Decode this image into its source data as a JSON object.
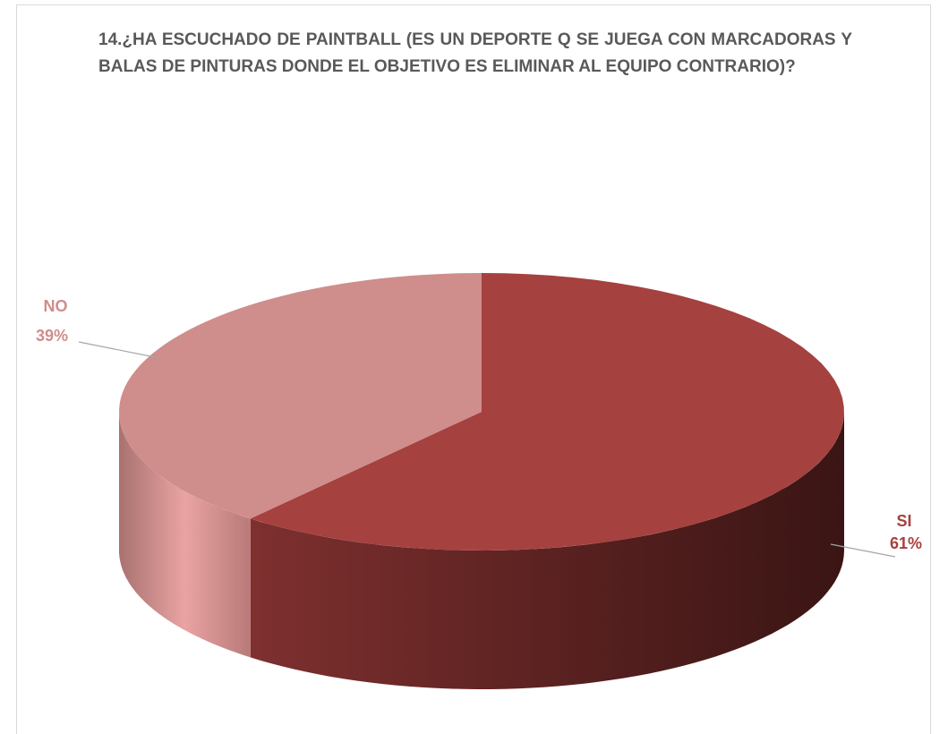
{
  "chart_data": {
    "type": "pie",
    "title": "14.¿HA ESCUCHADO DE PAINTBALL (ES UN DEPORTE Q SE JUEGA CON MARCADORAS Y BALAS DE PINTURAS DONDE EL OBJETIVO ES ELIMINAR AL EQUIPO CONTRARIO)?",
    "categories": [
      "SI",
      "NO"
    ],
    "values": [
      61,
      39
    ],
    "value_labels": [
      "61%",
      "39%"
    ],
    "colors": [
      "#a5413f",
      "#cf8d8c"
    ]
  }
}
